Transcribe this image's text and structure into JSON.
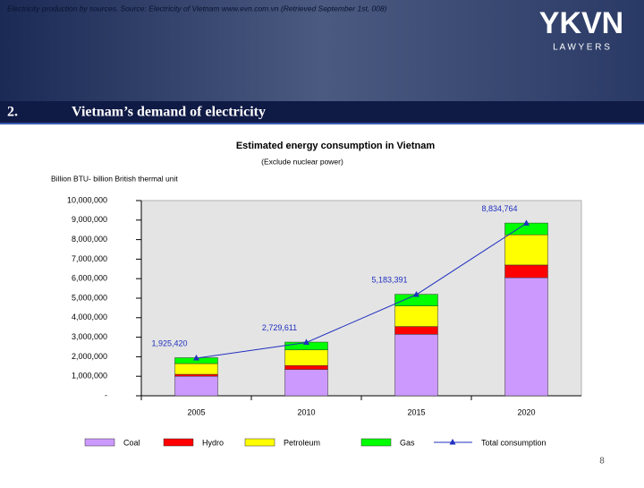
{
  "header": {
    "source_note": "Electricity production by sources.  Source: Electricity of Vietnam www.evn.com.vn (Retrieved September 1st, 008)",
    "logo": "YKVN",
    "logo_sub": "L A W Y E R S"
  },
  "section": {
    "number": "2.",
    "title": "Vietnam’s demand of electricity"
  },
  "page_number": "8",
  "chart_data": {
    "type": "bar",
    "stacked": true,
    "title": "Estimated energy consumption in Vietnam",
    "subtitle": "(Exclude nuclear power)",
    "y_label": "Billion BTU- billion British thermal unit",
    "categories": [
      "2005",
      "2010",
      "2015",
      "2020"
    ],
    "ylim": [
      0,
      10000000
    ],
    "yticks": [
      {
        "value": 0,
        "label": "-"
      },
      {
        "value": 1000000,
        "label": "1,000,000"
      },
      {
        "value": 2000000,
        "label": "2,000,000"
      },
      {
        "value": 3000000,
        "label": "3,000,000"
      },
      {
        "value": 4000000,
        "label": "4,000,000"
      },
      {
        "value": 5000000,
        "label": "5,000,000"
      },
      {
        "value": 6000000,
        "label": "6,000,000"
      },
      {
        "value": 7000000,
        "label": "7,000,000"
      },
      {
        "value": 8000000,
        "label": "8,000,000"
      },
      {
        "value": 9000000,
        "label": "9,000,000"
      },
      {
        "value": 10000000,
        "label": "10,000,000"
      }
    ],
    "series": [
      {
        "name": "Coal",
        "type": "bar",
        "color": "#cc99ff",
        "values": [
          1000000,
          1350000,
          3150000,
          6050000
        ]
      },
      {
        "name": "Hydro",
        "type": "bar",
        "color": "#ff0000",
        "values": [
          100000,
          200000,
          400000,
          650000
        ]
      },
      {
        "name": "Petroleum",
        "type": "bar",
        "color": "#ffff00",
        "values": [
          550000,
          800000,
          1050000,
          1550000
        ]
      },
      {
        "name": "Gas",
        "type": "bar",
        "color": "#00ff00",
        "values": [
          300000,
          400000,
          600000,
          600000
        ]
      },
      {
        "name": "Total consumption",
        "type": "line",
        "color": "#1f2fbf",
        "values": [
          1925420,
          2729611,
          5183391,
          8834764
        ],
        "value_labels": [
          "1,925,420",
          "2,729,611",
          "5,183,391",
          "8,834,764"
        ]
      }
    ]
  }
}
